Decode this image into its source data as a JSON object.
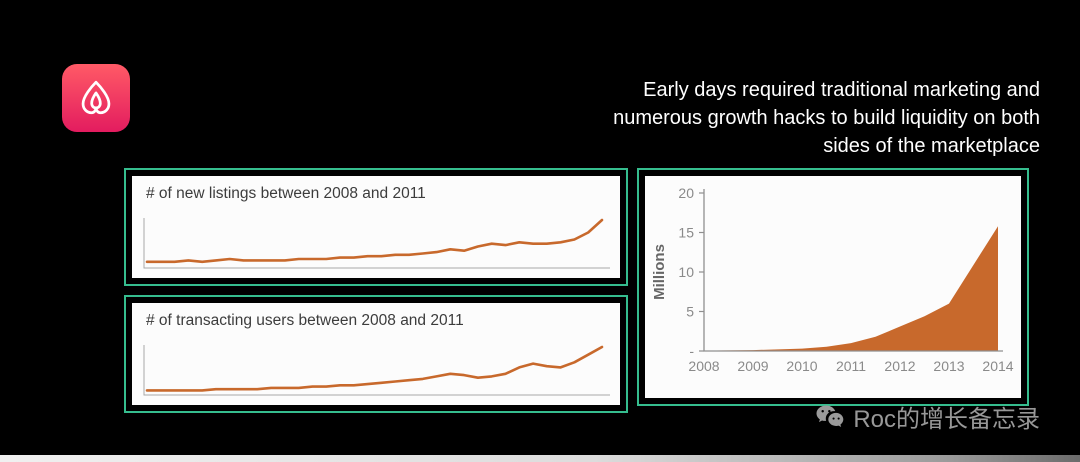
{
  "headline": {
    "lines": [
      "Early days required traditional marketing and",
      "numerous growth hacks to build liquidity on both",
      "sides of the marketplace"
    ]
  },
  "logo": {
    "brand": "Airbnb"
  },
  "watermark": {
    "text": "Roc的增长备忘录",
    "icon": "wechat-icon"
  },
  "colors": {
    "background": "#000000",
    "panel_border": "#35bd8e",
    "panel_bg": "#fcfcfc",
    "line": "#c8692c",
    "area": "#c8692c",
    "axis": "#8f8f8f",
    "headline_text": "#ffffff",
    "watermark_text": "#989898",
    "logo_gradient_top": "#ff5a66",
    "logo_gradient_bottom": "#e31c5f"
  },
  "chart_data": [
    {
      "id": "new-listings",
      "type": "line",
      "title": "# of new listings between 2008 and 2011",
      "x_range": [
        "2008",
        "2011"
      ],
      "legend": false,
      "grid": false,
      "values": [
        3,
        3,
        3,
        4,
        3,
        4,
        5,
        4,
        4,
        4,
        4,
        5,
        5,
        5,
        6,
        6,
        7,
        7,
        8,
        8,
        9,
        10,
        12,
        11,
        14,
        16,
        15,
        17,
        16,
        16,
        17,
        19,
        24,
        33
      ]
    },
    {
      "id": "transacting-users",
      "type": "line",
      "title": "# of transacting users between 2008 and 2011",
      "x_range": [
        "2008",
        "2011"
      ],
      "legend": false,
      "grid": false,
      "values": [
        2,
        2,
        2,
        2,
        2,
        3,
        3,
        3,
        3,
        4,
        4,
        4,
        5,
        5,
        6,
        6,
        7,
        8,
        9,
        10,
        11,
        13,
        15,
        14,
        12,
        13,
        15,
        20,
        23,
        21,
        20,
        24,
        30,
        36
      ]
    },
    {
      "id": "growth-millions",
      "type": "area",
      "title": "",
      "ylabel": "Millions",
      "categories": [
        "2008",
        "2009",
        "2010",
        "2011",
        "2012",
        "2013",
        "2014"
      ],
      "x": [
        0,
        1,
        2,
        2.5,
        3,
        3.5,
        4,
        4.5,
        5,
        6
      ],
      "values": [
        0.05,
        0.12,
        0.3,
        0.55,
        1.0,
        1.8,
        3.1,
        4.4,
        6.0,
        15.8
      ],
      "ytick_values": [
        20,
        15,
        10,
        5,
        0
      ],
      "ytick_labels": [
        "20",
        "15",
        "10",
        "5",
        "-"
      ],
      "ylim": [
        0,
        20
      ],
      "grid": false,
      "legend": false
    }
  ]
}
